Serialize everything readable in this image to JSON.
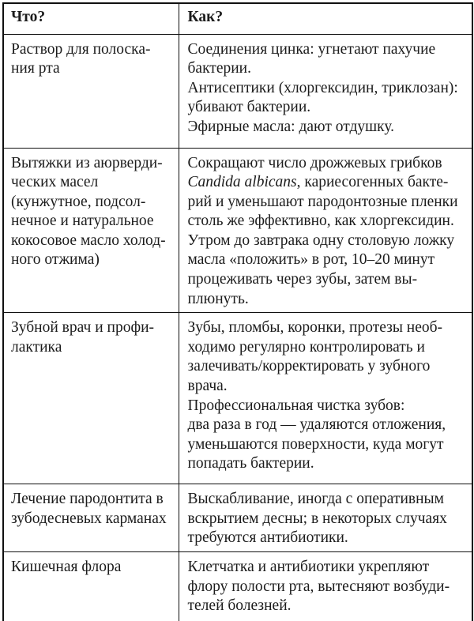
{
  "table": {
    "columns": [
      {
        "label": "Что?"
      },
      {
        "label": "Как?"
      }
    ],
    "rows": [
      {
        "what": "Раствор для полоска-\nния рта",
        "how": "Соединения цинка: угнетают пахучие\nбактерии.\nАнтисептики (хлоргексидин, триклозан):\nубивают бактерии.\nЭфирные масла: дают отдушку."
      },
      {
        "what": "Вытяжки из аюрверди-\nческих масел\n(кунжутное, подсол-\nнечное и натуральное\nкокосовое масло холод-\nного отжима)",
        "how_before_italic": "Сокращают число дрожжевых грибков\n",
        "how_italic": "Candida albicans",
        "how_after_italic": ", кариесогенных бакте-\nрий и уменьшают пародонтозные пленки\nстоль же эффективно, как хлоргексидин.\nУтром до завтрака одну столовую ложку\nмасла «положить» в рот, 10–20 минут\nпроцеживать через зубы, затем вы-\nплюнуть."
      },
      {
        "what": "Зубной врач и профи-\nлактика",
        "how": "Зубы, пломбы, коронки, протезы необ-\nходимо регулярно контролировать и\nзалечивать/корректировать у зубного\nврача.\nПрофессиональная чистка зубов:\nдва раза в год — удаляются отложения,\nуменьшаются поверхности, куда могут\nпопадать бактерии."
      },
      {
        "what": "Лечение пародонтита в\nзубодесневых карманах",
        "how": "Выскабливание, иногда с оперативным\nвскрытием десны; в некоторых случаях\nтребуются антибиотики."
      },
      {
        "what": "Кишечная флора",
        "how": "Клетчатка и антибиотики укрепляют\nфлору полости рта, вытесняют возбуди-\nтелей болезней."
      }
    ]
  }
}
